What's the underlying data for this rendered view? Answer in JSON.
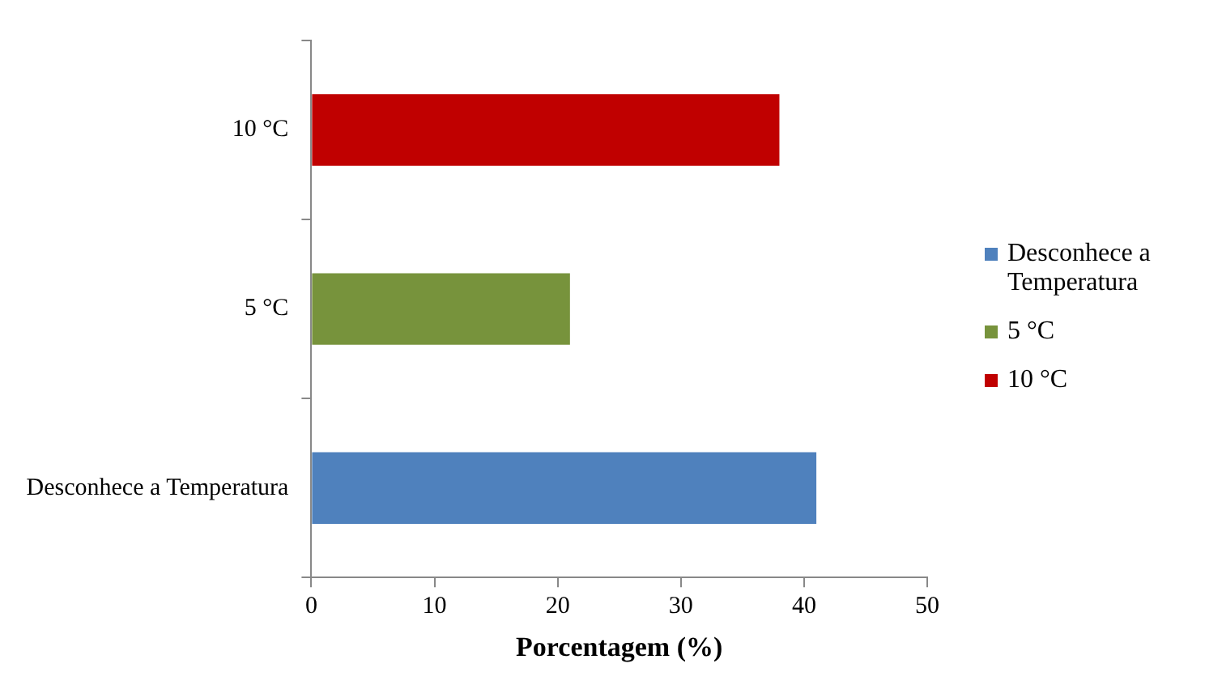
{
  "chart_data": {
    "type": "bar",
    "orientation": "horizontal",
    "xlabel": "Porcentagem (%)",
    "categories": [
      "10 °C",
      "5 °C",
      "Desconhece a Temperatura"
    ],
    "series": [
      {
        "name": "Desconhece a Temperatura",
        "color": "#4f81bd",
        "values": [
          null,
          null,
          41
        ]
      },
      {
        "name": "5 °C",
        "color": "#77933c",
        "values": [
          null,
          21,
          null
        ]
      },
      {
        "name": "10 °C",
        "color": "#c00000",
        "values": [
          38,
          null,
          null
        ]
      }
    ],
    "xlim": [
      0,
      50
    ],
    "xticks": [
      0,
      10,
      20,
      30,
      40,
      50
    ],
    "grid": false,
    "legend": "right"
  }
}
